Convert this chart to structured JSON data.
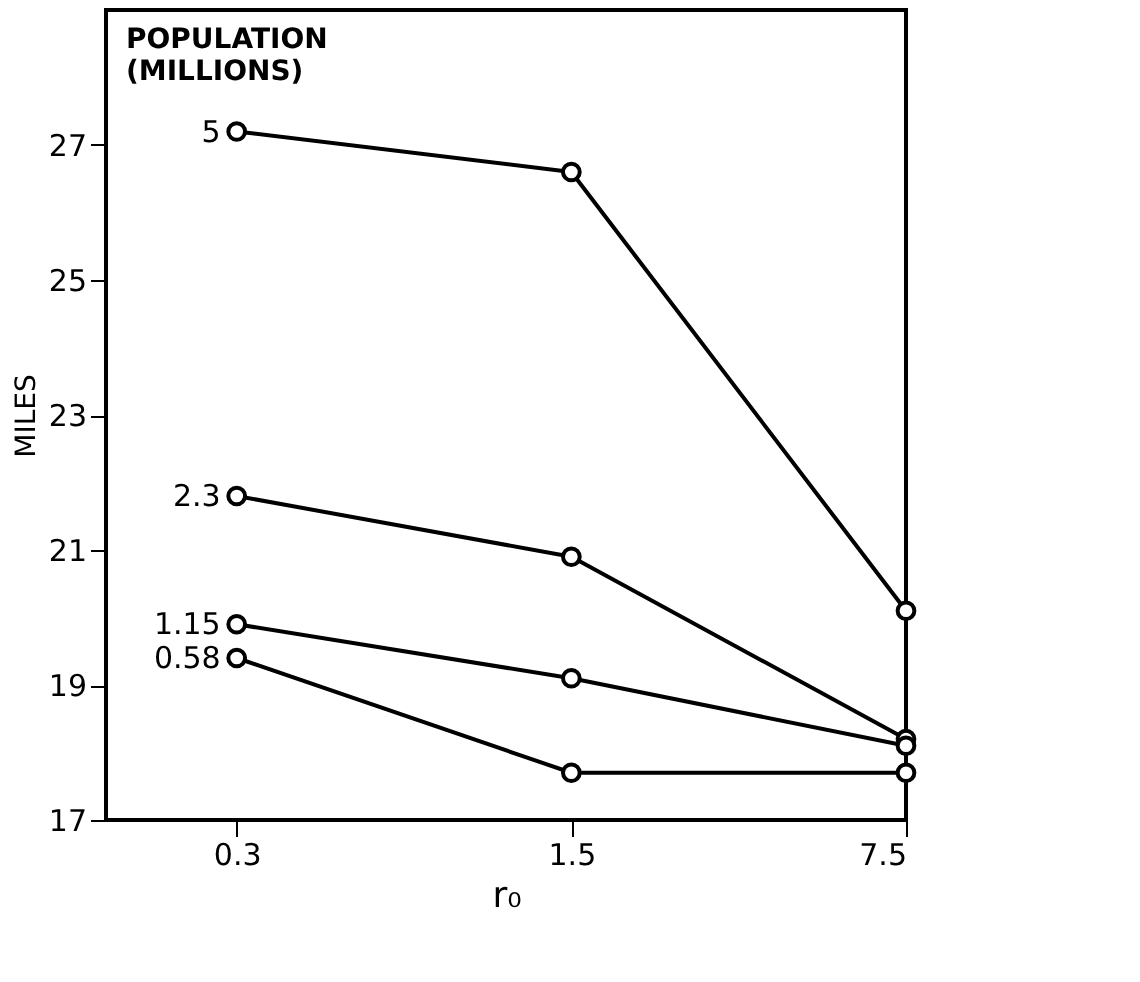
{
  "chart_data": {
    "type": "line",
    "xlabel": "r₀",
    "ylabel": "MILES",
    "legend_title": "POPULATION (MILLIONS)",
    "x": [
      0.3,
      1.5,
      7.5
    ],
    "log": "x",
    "xlim": [
      0.16,
      7.5
    ],
    "xticks": [
      0.3,
      1.5,
      7.5
    ],
    "ylim": [
      17,
      29
    ],
    "yticks": [
      17,
      19,
      21,
      23,
      25,
      27
    ],
    "series": [
      {
        "name": "5",
        "color": "#000000",
        "values": [
          27.2,
          26.6,
          20.1
        ]
      },
      {
        "name": "2.3",
        "color": "#000000",
        "values": [
          21.8,
          20.9,
          18.2
        ]
      },
      {
        "name": "1.15",
        "color": "#000000",
        "values": [
          19.9,
          19.1,
          18.1
        ]
      },
      {
        "name": "0.58",
        "color": "#000000",
        "values": [
          19.4,
          17.7,
          17.7
        ]
      }
    ],
    "marker": "circle",
    "line_style": "solid",
    "grid": false
  }
}
